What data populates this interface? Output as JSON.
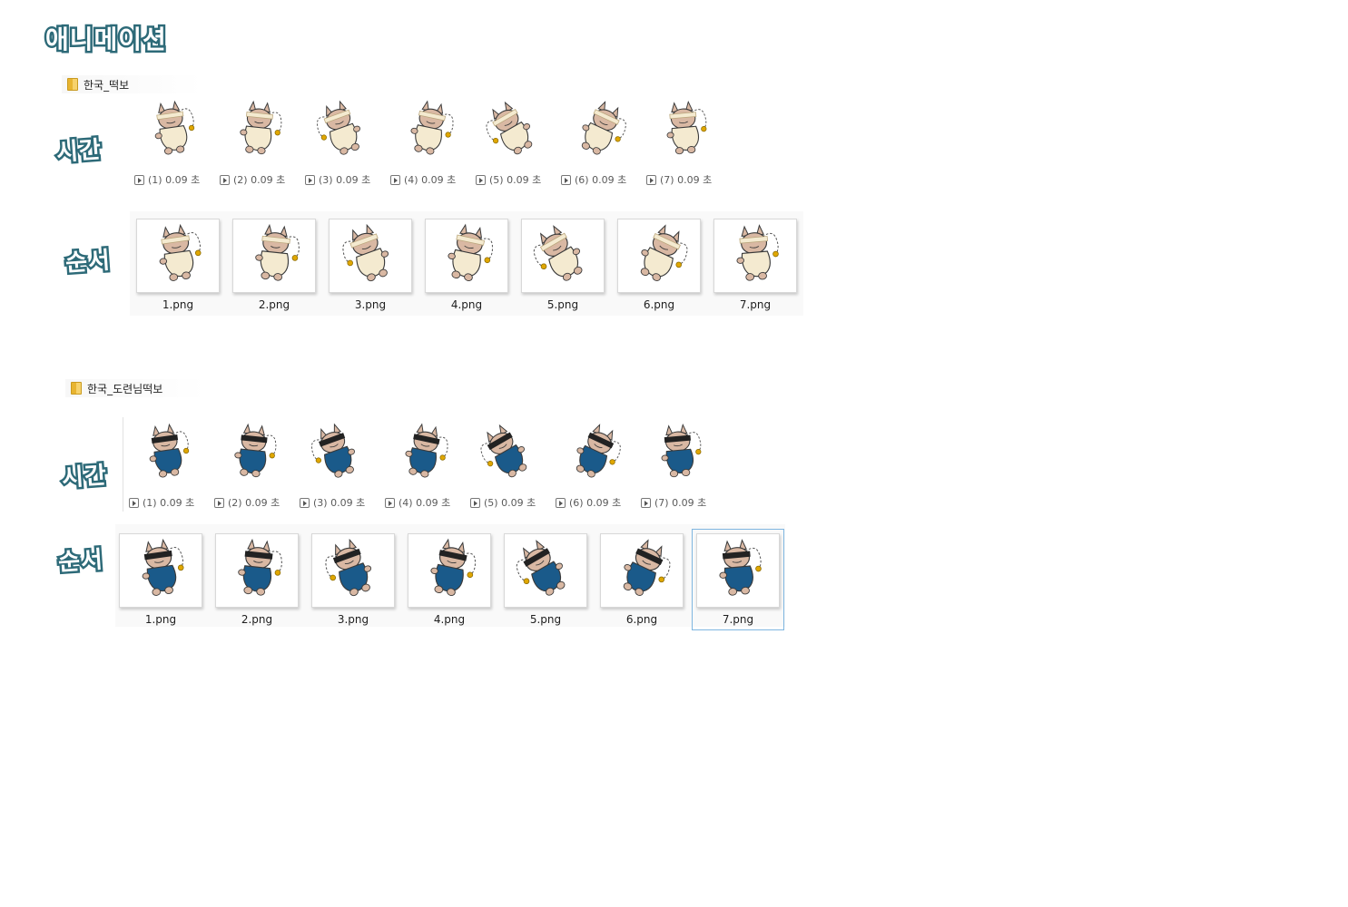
{
  "title": "애니메이션",
  "labels": {
    "time": "시간",
    "order": "순서"
  },
  "colors": {
    "skin": "#d9b8a3",
    "bandage": "#f4ead0",
    "uniform": "#1a5a8a",
    "band": "#222222",
    "outline": "#3a3a3a",
    "bead": "#e0a700"
  },
  "sections": [
    {
      "folder": "한국_떡보",
      "style": "bandage",
      "timeline": [
        {
          "label": "(1) 0.09 초"
        },
        {
          "label": "(2) 0.09 초"
        },
        {
          "label": "(3) 0.09 초"
        },
        {
          "label": "(4) 0.09 초"
        },
        {
          "label": "(5) 0.09 초"
        },
        {
          "label": "(6) 0.09 초"
        },
        {
          "label": "(7) 0.09 초"
        }
      ],
      "files": [
        "1.png",
        "2.png",
        "3.png",
        "4.png",
        "5.png",
        "6.png",
        "7.png"
      ]
    },
    {
      "folder": "한국_도련님떡보",
      "style": "uniform",
      "timeline": [
        {
          "label": "(1) 0.09 초"
        },
        {
          "label": "(2) 0.09 초"
        },
        {
          "label": "(3) 0.09 초"
        },
        {
          "label": "(4) 0.09 초"
        },
        {
          "label": "(5) 0.09 초"
        },
        {
          "label": "(6) 0.09 초"
        },
        {
          "label": "(7) 0.09 초"
        }
      ],
      "files": [
        "1.png",
        "2.png",
        "3.png",
        "4.png",
        "5.png",
        "6.png",
        "7.png"
      ],
      "selected_file": "7.png"
    }
  ]
}
